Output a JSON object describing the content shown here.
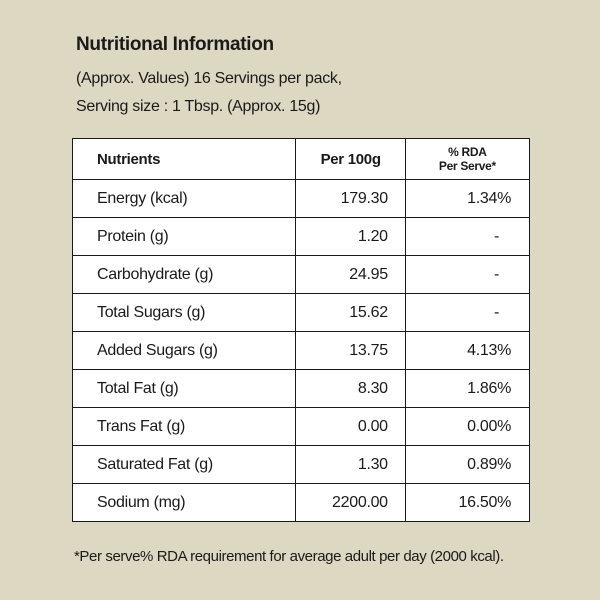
{
  "title": "Nutritional Information",
  "subtitle_line1": "(Approx. Values) 16 Servings per pack,",
  "subtitle_line2": "Serving size : 1 Tbsp. (Approx. 15g)",
  "table": {
    "headers": {
      "nutrients": "Nutrients",
      "per100g": "Per 100g",
      "rda_line1": "% RDA",
      "rda_line2": "Per Serve*"
    },
    "rows": [
      {
        "nutrient": "Energy (kcal)",
        "per100g": "179.30",
        "rda": "1.34%"
      },
      {
        "nutrient": "Protein (g)",
        "per100g": "1.20",
        "rda": "-"
      },
      {
        "nutrient": "Carbohydrate (g)",
        "per100g": "24.95",
        "rda": "-"
      },
      {
        "nutrient": "Total Sugars (g)",
        "per100g": "15.62",
        "rda": "-"
      },
      {
        "nutrient": "Added Sugars (g)",
        "per100g": "13.75",
        "rda": "4.13%"
      },
      {
        "nutrient": "Total Fat (g)",
        "per100g": "8.30",
        "rda": "1.86%"
      },
      {
        "nutrient": "Trans Fat (g)",
        "per100g": "0.00",
        "rda": "0.00%"
      },
      {
        "nutrient": "Saturated Fat (g)",
        "per100g": "1.30",
        "rda": "0.89%"
      },
      {
        "nutrient": "Sodium (mg)",
        "per100g": "2200.00",
        "rda": "16.50%"
      }
    ]
  },
  "footnote": "*Per serve% RDA requirement for average adult per day (2000 kcal).",
  "colors": {
    "background": "#dcd8c2",
    "table_background": "#ffffff",
    "text": "#1a1a1a"
  }
}
